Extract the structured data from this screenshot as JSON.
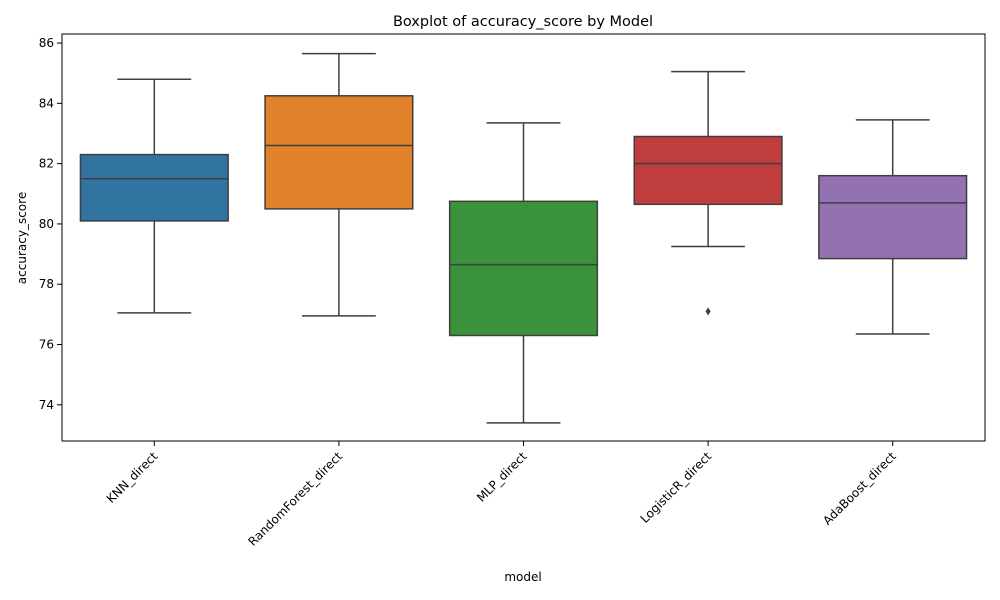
{
  "chart_data": {
    "type": "boxplot",
    "title": "Boxplot of accuracy_score by Model",
    "xlabel": "model",
    "ylabel": "accuracy_score",
    "ylim": [
      72.8,
      86.3
    ],
    "yticks": [
      74,
      76,
      78,
      80,
      82,
      84,
      86
    ],
    "grid": false,
    "legend": "none",
    "categories": [
      "KNN_direct",
      "RandomForest_direct",
      "MLP_direct",
      "LogisticR_direct",
      "AdaBoost_direct"
    ],
    "boxes": [
      {
        "whisker_low": 77.05,
        "q1": 80.1,
        "median": 81.5,
        "q3": 82.3,
        "whisker_high": 84.8,
        "outliers": [],
        "color": "#3274a1"
      },
      {
        "whisker_low": 76.95,
        "q1": 80.5,
        "median": 82.6,
        "q3": 84.25,
        "whisker_high": 85.65,
        "outliers": [],
        "color": "#e1812c"
      },
      {
        "whisker_low": 73.4,
        "q1": 76.3,
        "median": 78.65,
        "q3": 80.75,
        "whisker_high": 83.35,
        "outliers": [],
        "color": "#3a923a"
      },
      {
        "whisker_low": 79.25,
        "q1": 80.65,
        "median": 82.0,
        "q3": 82.9,
        "whisker_high": 85.05,
        "outliers": [
          77.1
        ],
        "color": "#c03d3e"
      },
      {
        "whisker_low": 76.35,
        "q1": 78.85,
        "median": 80.7,
        "q3": 81.6,
        "whisker_high": 83.45,
        "outliers": [],
        "color": "#9372b2"
      }
    ]
  }
}
